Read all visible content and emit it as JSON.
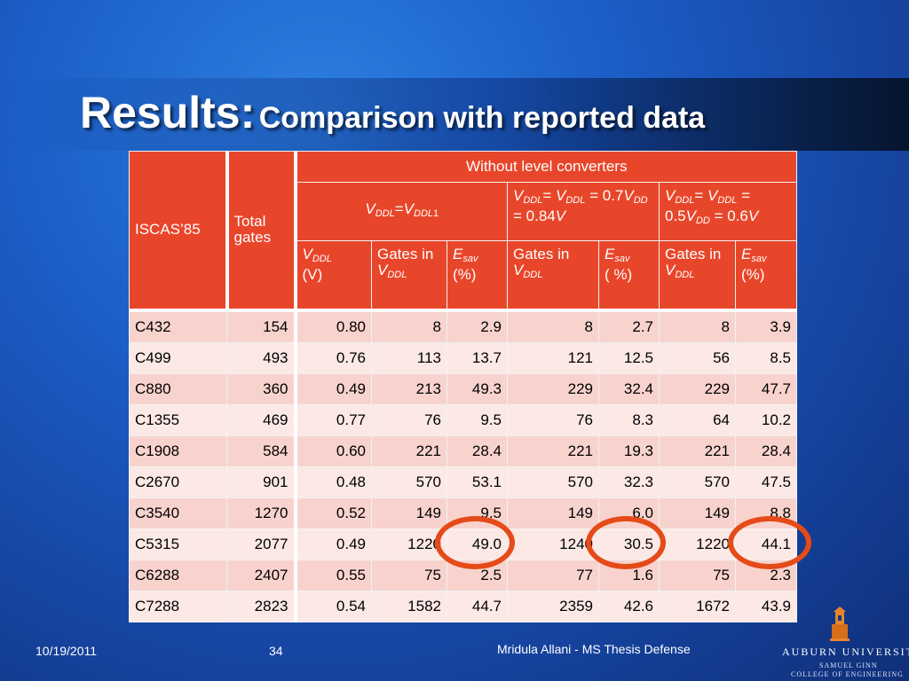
{
  "slide": {
    "title_main": "Results:",
    "title_sub": "Comparison with reported data"
  },
  "table": {
    "col_iscas": "ISCAS’85",
    "col_total": "Total gates",
    "group_header": "Without level converters",
    "sub1": {
      "v": "V",
      "s1": "DDL",
      "eq": "=",
      "v2": "V",
      "s2": "DDL",
      "tail": "1"
    },
    "sub2": {
      "v": "V",
      "s1": "DDL",
      "eq": "= ",
      "v2": "V",
      "s2": "DDL",
      "eq2": " = 0.7",
      "v3": "V",
      "s3": "DD",
      "mid": " = 0.84",
      "v4": "V"
    },
    "sub3": {
      "v": "V",
      "s1": "DDL",
      "eq": "= ",
      "v2": "V",
      "s2": "DDL",
      "eq2": " = 0.5",
      "v3": "V",
      "s3": "DD",
      "mid": " = 0.6",
      "v4": "V"
    },
    "h_vddl": {
      "v": "V",
      "s": "DDL",
      "unit": "(V)"
    },
    "h_gates1": {
      "pre": "Gates in ",
      "v": "V",
      "s": "DDL"
    },
    "h_esav1": {
      "e": "E",
      "s": "sav",
      "unit": "(%)"
    },
    "h_gates2": {
      "pre": "Gates in ",
      "v": "V",
      "s": "DDL"
    },
    "h_esav2": {
      "e": "E",
      "s": "sav",
      "unit": "( %)"
    },
    "h_gates3": {
      "pre": "Gates in ",
      "v": "V",
      "s": "DDL"
    },
    "h_esav3": {
      "e": "E",
      "s": "sav",
      "unit": "(%)"
    },
    "rows": [
      [
        "C432",
        "154",
        "0.80",
        "8",
        "2.9",
        "8",
        "2.7",
        "8",
        "3.9"
      ],
      [
        "C499",
        "493",
        "0.76",
        "113",
        "13.7",
        "121",
        "12.5",
        "56",
        "8.5"
      ],
      [
        "C880",
        "360",
        "0.49",
        "213",
        "49.3",
        "229",
        "32.4",
        "229",
        "47.7"
      ],
      [
        "C1355",
        "469",
        "0.77",
        "76",
        "9.5",
        "76",
        "8.3",
        "64",
        "10.2"
      ],
      [
        "C1908",
        "584",
        "0.60",
        "221",
        "28.4",
        "221",
        "19.3",
        "221",
        "28.4"
      ],
      [
        "C2670",
        "901",
        "0.48",
        "570",
        "53.1",
        "570",
        "32.3",
        "570",
        "47.5"
      ],
      [
        "C3540",
        "1270",
        "0.52",
        "149",
        "9.5",
        "149",
        "6.0",
        "149",
        "8.8"
      ],
      [
        "C5315",
        "2077",
        "0.49",
        "1220",
        "49.0",
        "1240",
        "30.5",
        "1220",
        "44.1"
      ],
      [
        "C6288",
        "2407",
        "0.55",
        "75",
        "2.5",
        "77",
        "1.6",
        "75",
        "2.3"
      ],
      [
        "C7288",
        "2823",
        "0.54",
        "1582",
        "44.7",
        "2359",
        "42.6",
        "1672",
        "43.9"
      ]
    ]
  },
  "footer": {
    "date": "10/19/2011",
    "page": "34",
    "author": "Mridula Allani - MS Thesis Defense"
  },
  "logo": {
    "org": "AUBURN UNIVERSITY",
    "line1": "SAMUEL GINN",
    "line2": "COLLEGE OF ENGINEERING"
  },
  "colors": {
    "header_bg": "#e8462a",
    "row_dark": "#f8d3cd",
    "row_light": "#fce9e6",
    "highlight_circle": "#e54b18"
  },
  "highlights": [
    "C5315 49.0",
    "C5315 30.5",
    "C5315 44.1"
  ]
}
